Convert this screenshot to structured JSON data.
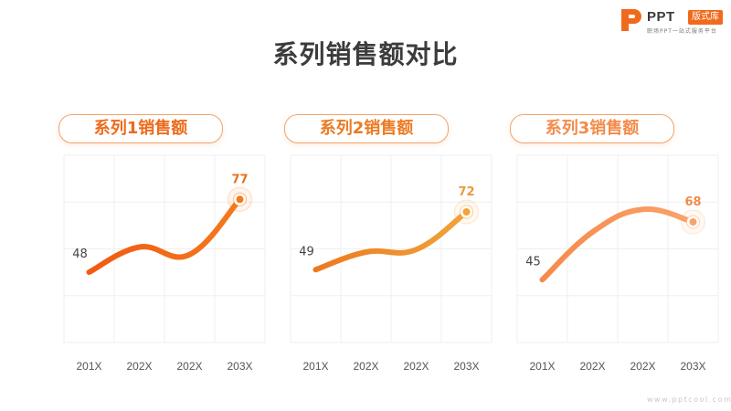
{
  "title": "系列销售额对比",
  "logo": {
    "brand": "PPT",
    "badge": "版式库",
    "tagline": "职场PPT一站式服务平台"
  },
  "watermark": "www.pptcool.com",
  "colors": {
    "accent": "#f06a1d",
    "title": "#3c3c3c",
    "axis_text": "#555555",
    "grid": "#efefef"
  },
  "chart_data": [
    {
      "type": "line",
      "title": "系列1销售额",
      "categories": [
        "201X",
        "202X",
        "202X",
        "203X"
      ],
      "series": [
        {
          "values": [
            48,
            58,
            55,
            77
          ]
        }
      ],
      "labels": [
        {
          "index": 0,
          "text": "48"
        },
        {
          "index": 3,
          "text": "77"
        }
      ],
      "color_start": "#f25a10",
      "color_end": "#f37a1e",
      "title_color": "#ee6a1a",
      "label_color_end": "#e8701c",
      "ylim": [
        20,
        100
      ],
      "grid": true
    },
    {
      "type": "line",
      "title": "系列2销售额",
      "categories": [
        "201X",
        "202X",
        "202X",
        "203X"
      ],
      "series": [
        {
          "values": [
            49,
            56,
            57,
            72
          ]
        }
      ],
      "labels": [
        {
          "index": 0,
          "text": "49"
        },
        {
          "index": 3,
          "text": "72"
        }
      ],
      "color_start": "#ec7a1f",
      "color_end": "#f0a43a",
      "title_color": "#ec7a22",
      "label_color_end": "#e89a3a",
      "ylim": [
        20,
        100
      ],
      "grid": true
    },
    {
      "type": "line",
      "title": "系列3销售额",
      "categories": [
        "201X",
        "202X",
        "202X",
        "203X"
      ],
      "series": [
        {
          "values": [
            45,
            64,
            73,
            68
          ]
        }
      ],
      "labels": [
        {
          "index": 0,
          "text": "45"
        },
        {
          "index": 3,
          "text": "68"
        }
      ],
      "color_start": "#f68a4a",
      "color_end": "#f9a36b",
      "title_color": "#f38b4a",
      "label_color_end": "#f08a4a",
      "ylim": [
        20,
        100
      ],
      "grid": true
    }
  ]
}
